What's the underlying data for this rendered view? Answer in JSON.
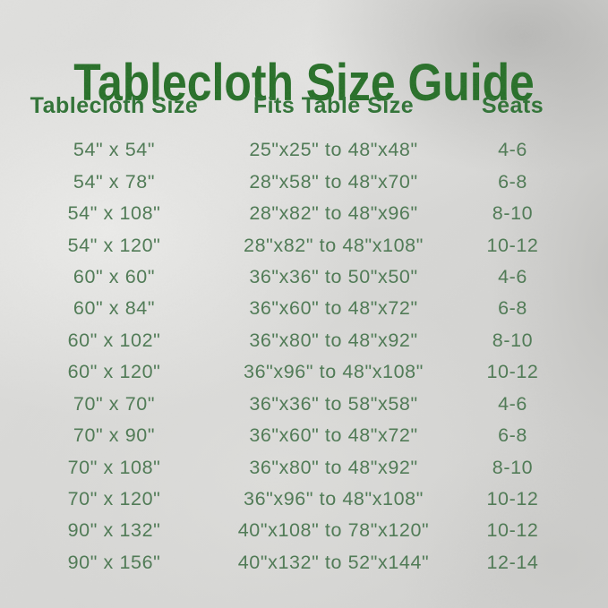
{
  "page": {
    "title": "Tablecloth Size Guide"
  },
  "colors": {
    "title_green": "#256e26",
    "header_green": "#2d7133",
    "row_green": "#4c7852",
    "background_silver": "#d8d8d6"
  },
  "table": {
    "headers": [
      "Tablecloth Size",
      "Fits Table Size",
      "Seats"
    ],
    "rows": [
      [
        "54\" x 54\"",
        "25\"x25\" to 48\"x48\"",
        "4-6"
      ],
      [
        "54\" x 78\"",
        "28\"x58\" to 48\"x70\"",
        "6-8"
      ],
      [
        "54\" x 108\"",
        "28\"x82\" to 48\"x96\"",
        "8-10"
      ],
      [
        "54\" x 120\"",
        "28\"x82\" to 48\"x108\"",
        "10-12"
      ],
      [
        "60\" x 60\"",
        "36\"x36\" to 50\"x50\"",
        "4-6"
      ],
      [
        "60\" x 84\"",
        "36\"x60\" to 48\"x72\"",
        "6-8"
      ],
      [
        "60\" x 102\"",
        "36\"x80\" to 48\"x92\"",
        "8-10"
      ],
      [
        "60\" x 120\"",
        "36\"x96\" to 48\"x108\"",
        "10-12"
      ],
      [
        "70\" x 70\"",
        "36\"x36\" to 58\"x58\"",
        "4-6"
      ],
      [
        "70\" x 90\"",
        "36\"x60\" to 48\"x72\"",
        "6-8"
      ],
      [
        "70\" x 108\"",
        "36\"x80\" to 48\"x92\"",
        "8-10"
      ],
      [
        "70\" x 120\"",
        "36\"x96\" to 48\"x108\"",
        "10-12"
      ],
      [
        "90\" x 132\"",
        "40\"x108\" to 78\"x120\"",
        "10-12"
      ],
      [
        "90\" x 156\"",
        "40\"x132\" to 52\"x144\"",
        "12-14"
      ]
    ]
  }
}
